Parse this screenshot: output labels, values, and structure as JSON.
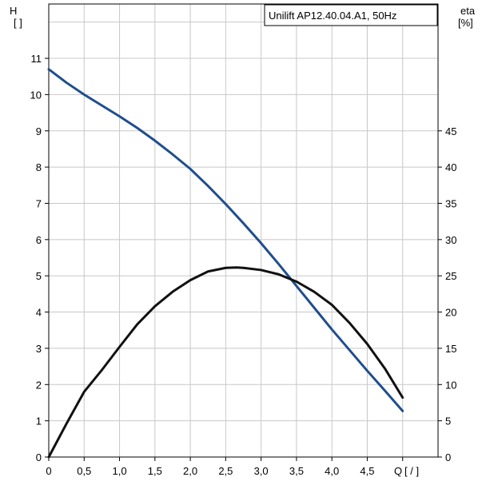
{
  "chart_data": {
    "type": "line",
    "title": "Unilift AP12.40.04.A1, 50Hz",
    "x_axis": {
      "label": "Q",
      "unit": "[ / ]",
      "range": [
        0,
        5.5
      ],
      "tick_labels": [
        "0",
        "0,5",
        "1,0",
        "1,5",
        "2,0",
        "2,5",
        "3,0",
        "3,5",
        "4,0",
        "4,5"
      ]
    },
    "y_left_axis": {
      "label": "H",
      "unit": "[ ]",
      "range": [
        0,
        12.5
      ],
      "tick_labels": [
        "0",
        "1",
        "2",
        "3",
        "4",
        "5",
        "6",
        "7",
        "8",
        "9",
        "10",
        "11"
      ]
    },
    "y_right_axis": {
      "label": "eta",
      "unit": "[%]",
      "range": [
        0,
        62.5
      ],
      "tick_labels": [
        "0",
        "5",
        "10",
        "15",
        "20",
        "25",
        "30",
        "35",
        "40",
        "45"
      ]
    },
    "grid": true,
    "series": [
      {
        "axis": "left",
        "color": "#1f4e8c",
        "x": [
          0,
          0.25,
          0.5,
          0.75,
          1.0,
          1.25,
          1.5,
          1.75,
          2.0,
          2.25,
          2.5,
          2.75,
          3.0,
          3.25,
          3.5,
          3.75,
          4.0,
          4.25,
          4.5,
          4.75,
          5.0
        ],
        "y": [
          10.7,
          10.33,
          10.0,
          9.7,
          9.4,
          9.08,
          8.73,
          8.35,
          7.95,
          7.48,
          6.98,
          6.45,
          5.9,
          5.32,
          4.72,
          4.12,
          3.52,
          2.95,
          2.38,
          1.83,
          1.27
        ]
      },
      {
        "axis": "right",
        "color": "#111111",
        "x": [
          0,
          0.25,
          0.5,
          0.75,
          1.0,
          1.25,
          1.5,
          1.75,
          2.0,
          2.25,
          2.5,
          2.65,
          2.75,
          3.0,
          3.25,
          3.5,
          3.75,
          4.0,
          4.25,
          4.5,
          4.75,
          5.0
        ],
        "y": [
          0,
          4.6,
          9.0,
          12.0,
          15.2,
          18.3,
          20.8,
          22.8,
          24.4,
          25.6,
          26.1,
          26.15,
          26.1,
          25.8,
          25.2,
          24.2,
          22.8,
          21.0,
          18.5,
          15.6,
          12.2,
          8.2
        ]
      }
    ]
  }
}
